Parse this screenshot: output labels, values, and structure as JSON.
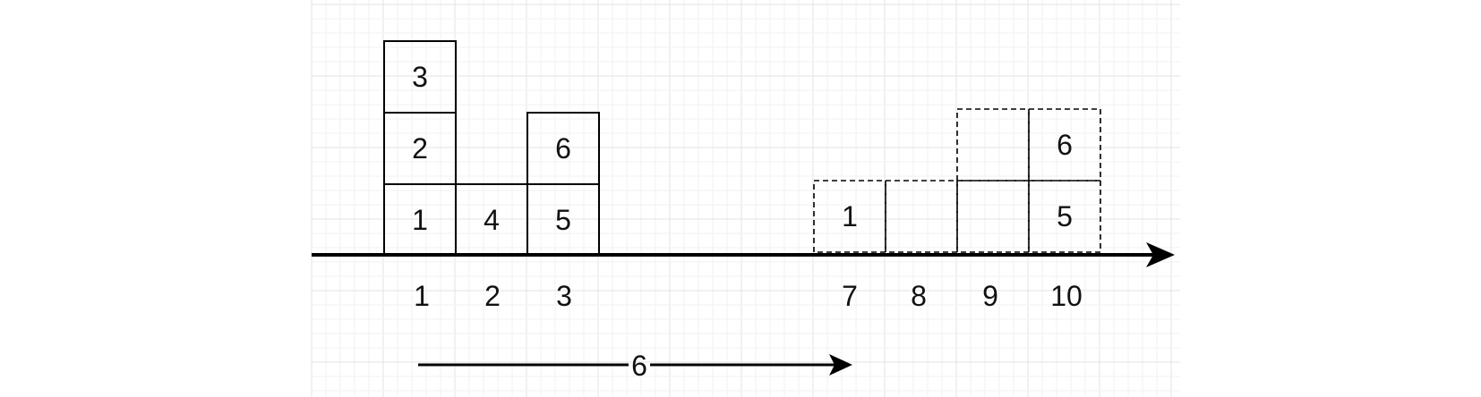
{
  "colors": {
    "background": "#ffffff",
    "grid_minor": "#f2f2f2",
    "grid_major": "#e3e3e3",
    "stroke": "#000000"
  },
  "left_stacks": {
    "box_style": "solid",
    "columns": [
      {
        "label": "1",
        "boxes": [
          "1",
          "2",
          "3"
        ]
      },
      {
        "label": "2",
        "boxes": [
          "4"
        ]
      },
      {
        "label": "3",
        "boxes": [
          "5",
          "6"
        ]
      }
    ]
  },
  "right_stacks": {
    "box_style": "dashed",
    "columns": [
      {
        "label": "7",
        "boxes": [
          "1"
        ]
      },
      {
        "label": "8",
        "boxes": [
          ""
        ]
      },
      {
        "label": "9",
        "boxes": [
          "",
          ""
        ]
      },
      {
        "label": "10",
        "boxes": [
          "5",
          "6"
        ]
      }
    ]
  },
  "shift_arrow": {
    "label": "6"
  }
}
